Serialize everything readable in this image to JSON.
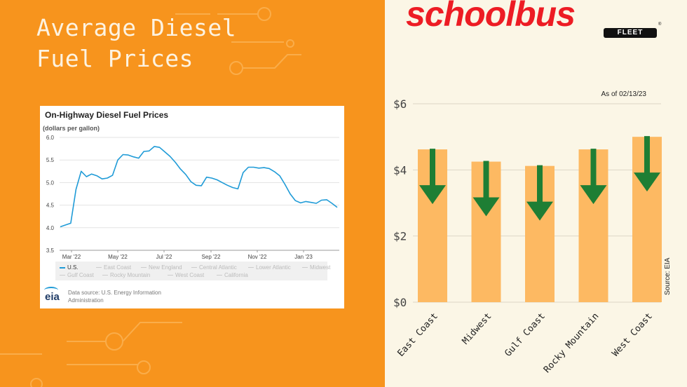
{
  "headline": [
    "Average Diesel",
    "Fuel Prices"
  ],
  "brand": {
    "wordmark": "schoolbus",
    "sub": "FLEET",
    "reg": "®"
  },
  "colors": {
    "left_bg": "#f7941d",
    "right_bg": "#fbf6e6",
    "line": "#1f9bd7",
    "bar": "#fdb962",
    "arrow": "#1e7e34",
    "brand_red": "#ed1c24"
  },
  "line_card": {
    "title": "On-Highway Diesel Fuel Prices",
    "units": "(dollars per gallon)",
    "legend": [
      "U.S.",
      "East Coast",
      "New England",
      "Central Atlantic",
      "Lower Atlantic",
      "Midwest",
      "Gulf Coast",
      "Rocky Mountain",
      "West Coast",
      "California"
    ],
    "source": "Data source: U.S. Energy Information Administration",
    "logo": "eia"
  },
  "chart_data": [
    {
      "type": "line",
      "title": "On-Highway Diesel Fuel Prices",
      "ylabel": "(dollars per gallon)",
      "ylim": [
        3.5,
        6.0
      ],
      "yticks": [
        "3.5",
        "4.0",
        "4.5",
        "5.0",
        "5.5",
        "6.0"
      ],
      "xtick_labels": [
        "Mar '22",
        "May '22",
        "Jul '22",
        "Sep '22",
        "Nov '22",
        "Jan '23"
      ],
      "grid": true,
      "series": [
        {
          "name": "U.S.",
          "values": [
            4.02,
            4.06,
            4.1,
            4.85,
            5.25,
            5.13,
            5.19,
            5.15,
            5.08,
            5.1,
            5.16,
            5.5,
            5.62,
            5.61,
            5.57,
            5.54,
            5.69,
            5.7,
            5.8,
            5.78,
            5.68,
            5.58,
            5.45,
            5.3,
            5.18,
            5.02,
            4.94,
            4.93,
            5.12,
            5.1,
            5.06,
            5.0,
            4.94,
            4.89,
            4.86,
            5.22,
            5.34,
            5.34,
            5.32,
            5.33,
            5.31,
            5.24,
            5.15,
            4.96,
            4.75,
            4.6,
            4.55,
            4.58,
            4.56,
            4.54,
            4.61,
            4.62,
            4.54,
            4.45
          ]
        }
      ]
    },
    {
      "type": "bar",
      "categories": [
        "East Coast",
        "Midwest",
        "Gulf Coast",
        "Rocky Mountain",
        "West Coast"
      ],
      "values": [
        4.62,
        4.25,
        4.12,
        4.62,
        5.0
      ],
      "ylim": [
        0,
        6
      ],
      "yticks": [
        "$0",
        "$2",
        "$4",
        "$6"
      ],
      "annotation": "As of 02/13/23",
      "source": "Source: EIA"
    }
  ]
}
